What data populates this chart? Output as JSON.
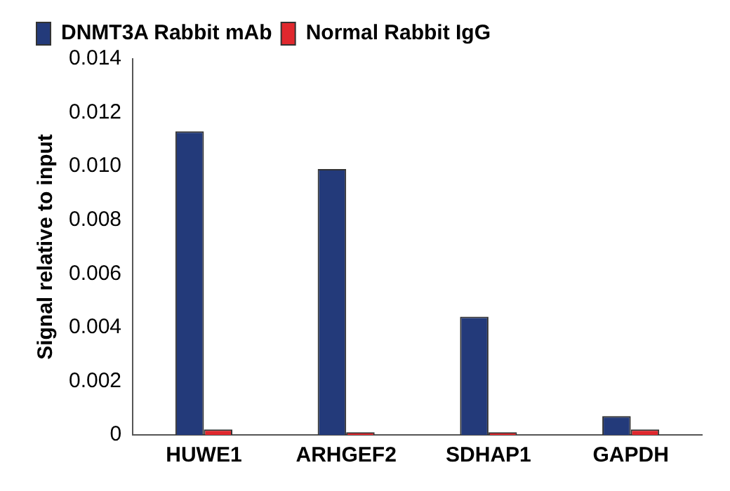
{
  "chart_data": {
    "type": "bar",
    "ylabel": "Signal relative to input",
    "categories": [
      "HUWE1",
      "ARHGEF2",
      "SDHAP1",
      "GAPDH"
    ],
    "series": [
      {
        "name": "DNMT3A Rabbit mAb",
        "color": "#233a7a",
        "values": [
          0.0113,
          0.0099,
          0.0044,
          0.0007
        ]
      },
      {
        "name": "Normal Rabbit IgG",
        "color": "#e0282e",
        "values": [
          0.0002,
          0.0001,
          0.0001,
          0.0002
        ]
      }
    ],
    "ylim": [
      0,
      0.014
    ],
    "yticks": [
      0,
      0.002,
      0.004,
      0.006,
      0.008,
      {
        "value": 0.01,
        "label": "0.010"
      },
      0.012,
      0.014
    ],
    "grid": false,
    "legend": "top left"
  }
}
